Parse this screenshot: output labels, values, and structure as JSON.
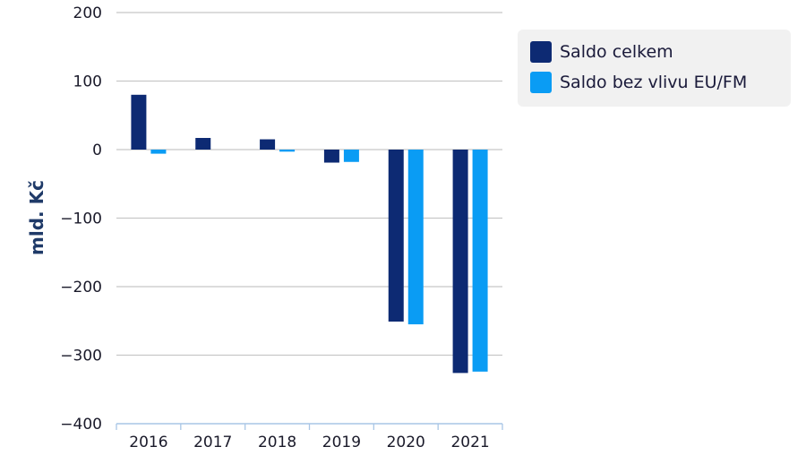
{
  "chart_data": {
    "type": "bar",
    "categories": [
      "2016",
      "2017",
      "2018",
      "2019",
      "2020",
      "2021"
    ],
    "series": [
      {
        "name": "Saldo celkem",
        "color": "#0d2a73",
        "values": [
          80,
          17,
          15,
          -19,
          -251,
          -326
        ]
      },
      {
        "name": "Saldo bez vlivu EU/FM",
        "color": "#0a9cf4",
        "values": [
          -6,
          0,
          -3,
          -18,
          -255,
          -324
        ]
      }
    ],
    "ylabel": "mld. Kč",
    "xlabel": "",
    "ylim": [
      -400,
      200
    ],
    "yticks": [
      200,
      100,
      0,
      -100,
      -200,
      -300,
      -400
    ],
    "ytick_labels": [
      "200",
      "100",
      "0",
      "−100",
      "−200",
      "−300",
      "−400"
    ],
    "grid": true,
    "legend_position": "top-right"
  }
}
